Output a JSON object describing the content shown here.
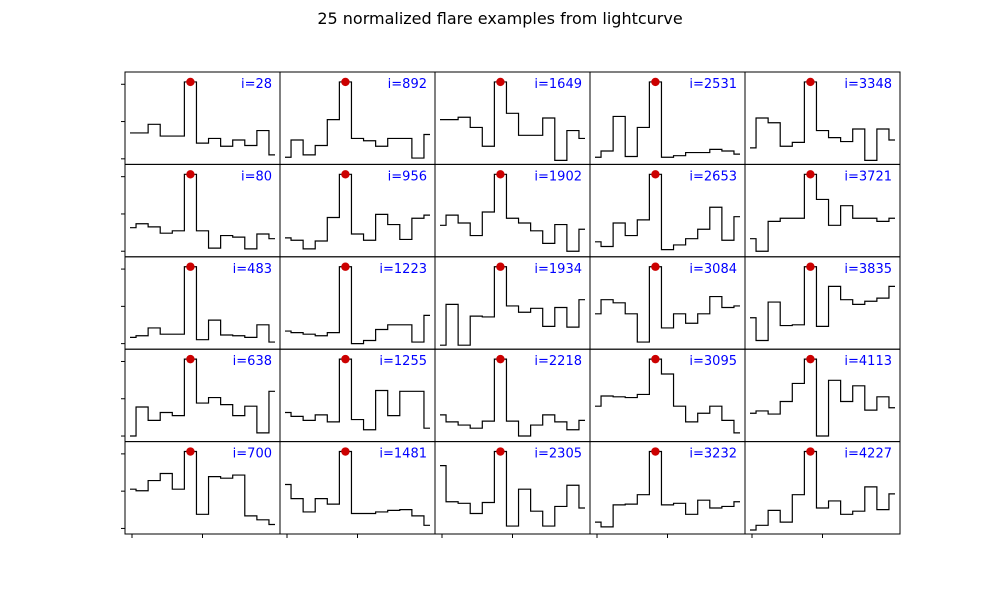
{
  "figure": {
    "title": "25 normalized flare examples from lightcurve"
  },
  "colors": {
    "line": "#000000",
    "peak_marker": "#cc0000",
    "label": "#0000ff",
    "frame": "#000000"
  },
  "chart_data": {
    "type": "line",
    "step": "steps-mid",
    "peak_index": 5,
    "grid": false,
    "legend": "none",
    "rows": 5,
    "cols": 5,
    "ylim": [
      0,
      1.05
    ],
    "panels": [
      {
        "label": "i=28",
        "values": [
          0.35,
          0.35,
          0.46,
          0.31,
          0.31,
          1.0,
          0.22,
          0.28,
          0.18,
          0.26,
          0.19,
          0.38,
          0.07
        ]
      },
      {
        "label": "i=892",
        "values": [
          0.04,
          0.26,
          0.07,
          0.19,
          0.52,
          1.0,
          0.28,
          0.25,
          0.18,
          0.28,
          0.28,
          0.03,
          0.33
        ]
      },
      {
        "label": "i=1649",
        "values": [
          0.52,
          0.52,
          0.55,
          0.42,
          0.18,
          1.0,
          0.6,
          0.32,
          0.32,
          0.54,
          0.0,
          0.38,
          0.28
        ]
      },
      {
        "label": "i=2531",
        "values": [
          0.04,
          0.12,
          0.56,
          0.05,
          0.42,
          1.0,
          0.04,
          0.06,
          0.1,
          0.1,
          0.14,
          0.12,
          0.08
        ]
      },
      {
        "label": "i=3348",
        "values": [
          0.16,
          0.54,
          0.48,
          0.18,
          0.23,
          1.0,
          0.38,
          0.29,
          0.24,
          0.4,
          0.0,
          0.4,
          0.26
        ]
      },
      {
        "label": "i=80",
        "values": [
          0.32,
          0.37,
          0.33,
          0.25,
          0.28,
          1.0,
          0.28,
          0.06,
          0.22,
          0.2,
          0.05,
          0.24,
          0.18
        ]
      },
      {
        "label": "i=956",
        "values": [
          0.19,
          0.16,
          0.05,
          0.15,
          0.45,
          1.0,
          0.24,
          0.16,
          0.49,
          0.36,
          0.17,
          0.44,
          0.48
        ]
      },
      {
        "label": "i=1902",
        "values": [
          0.35,
          0.48,
          0.38,
          0.22,
          0.52,
          1.0,
          0.44,
          0.38,
          0.28,
          0.12,
          0.36,
          0.02,
          0.3
        ]
      },
      {
        "label": "i=2653",
        "values": [
          0.14,
          0.08,
          0.38,
          0.22,
          0.42,
          1.0,
          0.04,
          0.1,
          0.18,
          0.3,
          0.58,
          0.16,
          0.46
        ]
      },
      {
        "label": "i=3721",
        "values": [
          0.18,
          0.02,
          0.4,
          0.44,
          0.44,
          1.0,
          0.68,
          0.35,
          0.6,
          0.44,
          0.44,
          0.4,
          0.44
        ]
      },
      {
        "label": "i=483",
        "values": [
          0.1,
          0.12,
          0.22,
          0.14,
          0.14,
          1.0,
          0.07,
          0.32,
          0.13,
          0.12,
          0.1,
          0.26,
          0.04
        ]
      },
      {
        "label": "i=1223",
        "values": [
          0.18,
          0.16,
          0.14,
          0.12,
          0.16,
          1.0,
          0.02,
          0.06,
          0.2,
          0.26,
          0.26,
          0.04,
          0.38
        ]
      },
      {
        "label": "i=1934",
        "values": [
          0.0,
          0.52,
          0.0,
          0.37,
          0.36,
          1.0,
          0.5,
          0.42,
          0.47,
          0.24,
          0.48,
          0.23,
          0.58
        ]
      },
      {
        "label": "i=3084",
        "values": [
          0.4,
          0.58,
          0.54,
          0.4,
          0.04,
          1.0,
          0.22,
          0.4,
          0.28,
          0.4,
          0.62,
          0.48,
          0.5
        ]
      },
      {
        "label": "i=3835",
        "values": [
          0.35,
          0.06,
          0.55,
          0.25,
          0.26,
          1.0,
          0.24,
          0.75,
          0.58,
          0.52,
          0.56,
          0.6,
          0.75
        ]
      },
      {
        "label": "i=638",
        "values": [
          0.02,
          0.39,
          0.22,
          0.32,
          0.28,
          1.0,
          0.44,
          0.51,
          0.42,
          0.28,
          0.4,
          0.06,
          0.59
        ]
      },
      {
        "label": "i=1255",
        "values": [
          0.32,
          0.27,
          0.22,
          0.29,
          0.2,
          1.0,
          0.23,
          0.1,
          0.6,
          0.28,
          0.59,
          0.59,
          0.12
        ]
      },
      {
        "label": "i=2218",
        "values": [
          0.29,
          0.2,
          0.16,
          0.12,
          0.21,
          1.0,
          0.21,
          0.02,
          0.16,
          0.29,
          0.2,
          0.1,
          0.22
        ]
      },
      {
        "label": "i=3095",
        "values": [
          0.4,
          0.53,
          0.52,
          0.51,
          0.55,
          1.0,
          0.81,
          0.4,
          0.2,
          0.31,
          0.4,
          0.22,
          0.06
        ]
      },
      {
        "label": "i=4113",
        "values": [
          0.31,
          0.34,
          0.3,
          0.46,
          0.69,
          1.0,
          0.02,
          0.73,
          0.46,
          0.66,
          0.35,
          0.52,
          0.38
        ]
      },
      {
        "label": "i=700",
        "values": [
          0.52,
          0.5,
          0.63,
          0.72,
          0.52,
          1.0,
          0.2,
          0.68,
          0.66,
          0.7,
          0.18,
          0.13,
          0.07
        ]
      },
      {
        "label": "i=1481",
        "values": [
          0.58,
          0.4,
          0.23,
          0.4,
          0.33,
          1.0,
          0.21,
          0.21,
          0.23,
          0.25,
          0.26,
          0.18,
          0.06
        ]
      },
      {
        "label": "i=2305",
        "values": [
          0.82,
          0.36,
          0.34,
          0.21,
          0.35,
          1.0,
          0.05,
          0.52,
          0.24,
          0.05,
          0.3,
          0.57,
          0.28
        ]
      },
      {
        "label": "i=3232",
        "values": [
          0.1,
          0.04,
          0.32,
          0.33,
          0.45,
          1.0,
          0.32,
          0.34,
          0.2,
          0.38,
          0.28,
          0.3,
          0.36
        ]
      },
      {
        "label": "i=4227",
        "values": [
          0.0,
          0.06,
          0.25,
          0.1,
          0.45,
          1.0,
          0.28,
          0.37,
          0.2,
          0.24,
          0.55,
          0.26,
          0.46
        ]
      }
    ]
  }
}
